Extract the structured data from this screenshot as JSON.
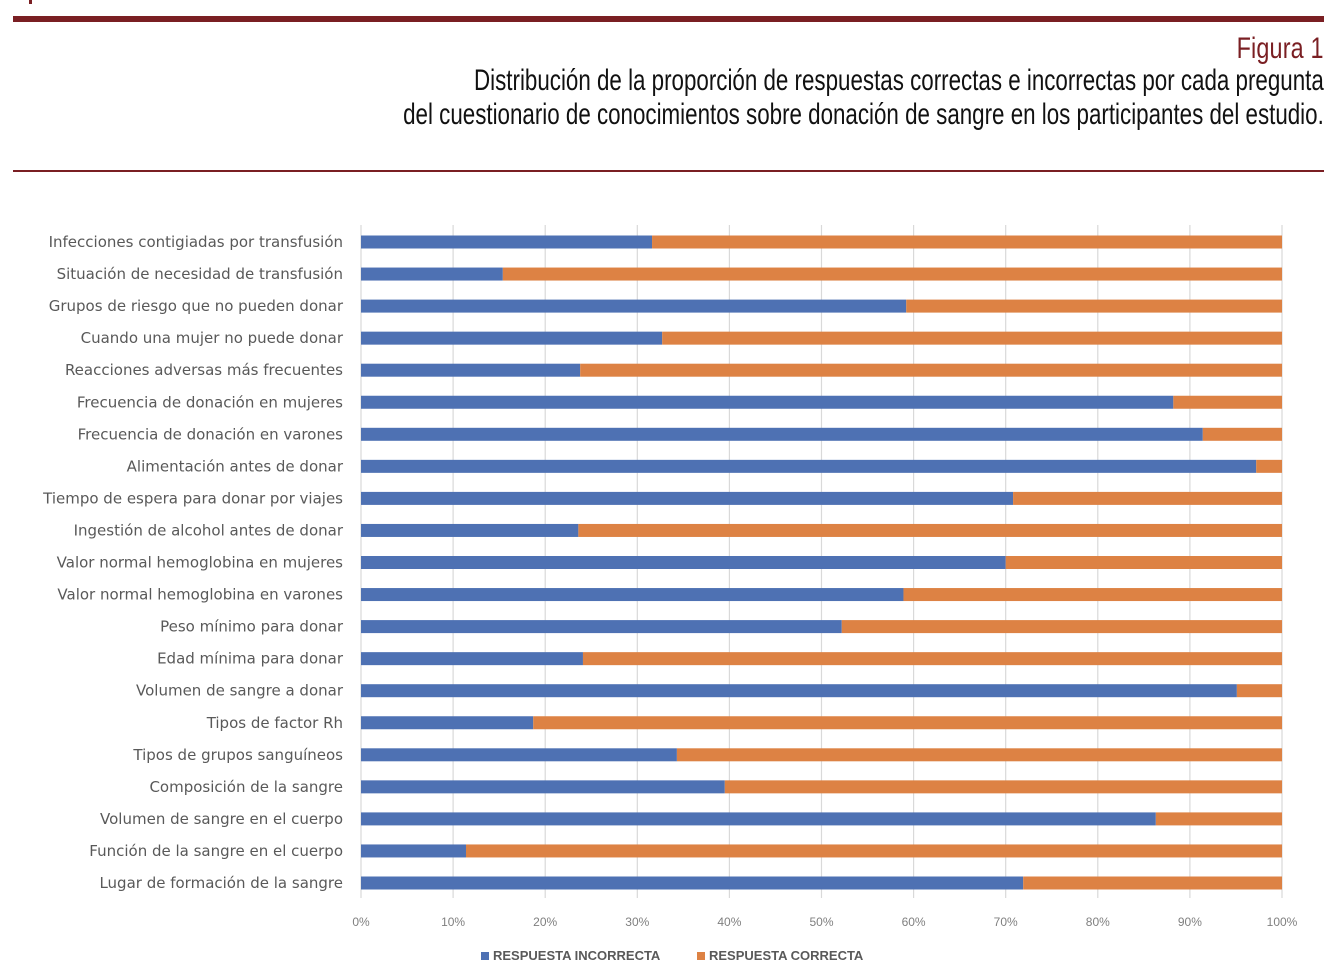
{
  "figure": {
    "label": "Figura 1",
    "caption_line1": "Distribución de la proporción de respuestas correctas e incorrectas por cada pregunta",
    "caption_line2": "del cuestionario de conocimientos sobre donación de sangre en los participantes del estudio."
  },
  "colors": {
    "accent_rule": "#7a1f23",
    "incorrect": "#4e71b3",
    "correct": "#dd8244",
    "grid": "#d9d9d9"
  },
  "chart_data": {
    "type": "bar",
    "orientation": "horizontal",
    "stacked": "percent",
    "title": "",
    "xlabel": "",
    "ylabel": "",
    "xlim": [
      0,
      100
    ],
    "x_ticks": [
      "0%",
      "10%",
      "20%",
      "30%",
      "40%",
      "50%",
      "60%",
      "70%",
      "80%",
      "90%",
      "100%"
    ],
    "grid": true,
    "legend_position": "bottom",
    "categories": [
      "Infecciones contigiadas por transfusión",
      "Situación de necesidad de transfusión",
      "Grupos de riesgo que no pueden donar",
      "Cuando una mujer no puede donar",
      "Reacciones adversas más frecuentes",
      "Frecuencia de donación en mujeres",
      "Frecuencia de donación en varones",
      "Alimentación antes de donar",
      "Tiempo de espera para donar por viajes",
      "Ingestión de alcohol antes de donar",
      "Valor normal hemoglobina en mujeres",
      "Valor normal hemoglobina en varones",
      "Peso mínimo para donar",
      "Edad mínima para donar",
      "Volumen de sangre a donar",
      "Tipos de factor Rh",
      "Tipos de grupos sanguíneos",
      "Composición de la sangre",
      "Volumen de sangre en el cuerpo",
      "Función de la sangre en el cuerpo",
      "Lugar de formación de la sangre"
    ],
    "series": [
      {
        "name": "RESPUESTA INCORRECTA",
        "color": "#4e71b3",
        "values": [
          31.6,
          15.4,
          59.2,
          32.7,
          23.8,
          88.2,
          91.4,
          97.2,
          70.8,
          23.6,
          70.0,
          58.9,
          52.2,
          24.1,
          95.1,
          18.7,
          34.3,
          39.5,
          86.3,
          11.4,
          71.9
        ]
      },
      {
        "name": "RESPUESTA CORRECTA",
        "color": "#dd8244",
        "values": [
          68.4,
          84.6,
          40.8,
          67.3,
          76.2,
          11.8,
          8.6,
          2.8,
          29.2,
          76.4,
          30.0,
          41.1,
          47.8,
          75.9,
          4.9,
          81.3,
          65.7,
          60.5,
          13.7,
          88.6,
          28.1
        ]
      }
    ]
  }
}
